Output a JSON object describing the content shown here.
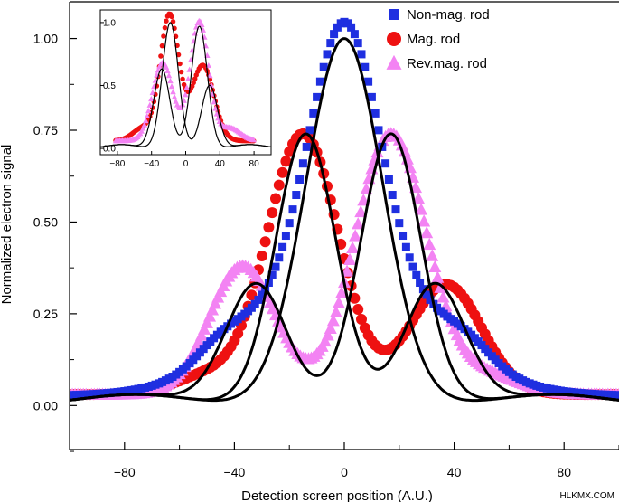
{
  "chart_data": {
    "type": "scatter",
    "title": "",
    "xlabel": "Detection screen position (A.U.)",
    "ylabel": "Normalized electron signal",
    "xlim": [
      -100,
      100
    ],
    "ylim": [
      -0.12,
      1.1
    ],
    "x_ticks": [
      -80,
      -40,
      0,
      40,
      80
    ],
    "x_tick_labels": [
      "−80",
      "−40",
      "0",
      "40",
      "80"
    ],
    "y_ticks": [
      0.0,
      0.25,
      0.5,
      0.75,
      1.0
    ],
    "y_tick_labels": [
      "0.00",
      "0.25",
      "0.50",
      "0.75",
      "1.00"
    ],
    "legend_position": "top-right",
    "series": [
      {
        "name": "Non-mag. rod",
        "marker": "square",
        "color": "#1f2fe0",
        "comps": [
          [
            0.06,
            0,
            40
          ],
          [
            0.62,
            0,
            12
          ],
          [
            0.34,
            0,
            28
          ],
          [
            0.05,
            -45,
            9
          ],
          [
            0.05,
            45,
            9
          ]
        ],
        "base": 0.025
      },
      {
        "name": "Mag. rod",
        "marker": "circle",
        "color": "#ee1111",
        "comps": [
          [
            0.71,
            -15,
            13
          ],
          [
            0.3,
            37,
            13
          ],
          [
            0.05,
            -50,
            12
          ]
        ],
        "base": 0.03
      },
      {
        "name": "Rev.mag. rod",
        "marker": "triangle",
        "color": "#f383f3",
        "comps": [
          [
            0.71,
            17,
            13
          ],
          [
            0.35,
            -37,
            12
          ],
          [
            0.05,
            52,
            12
          ]
        ],
        "base": 0.03
      }
    ],
    "fits": [
      {
        "color": "#000000",
        "comps": [
          [
            1.0,
            0,
            14
          ]
        ],
        "base": 0.0,
        "rings": [
          0.03,
          76,
          20
        ]
      },
      {
        "color": "#000000",
        "comps": [
          [
            0.74,
            -14,
            11
          ],
          [
            0.33,
            33,
            11
          ]
        ],
        "base": 0.0,
        "rings": [
          0.03,
          76,
          20
        ]
      },
      {
        "color": "#000000",
        "comps": [
          [
            0.74,
            17,
            11
          ],
          [
            0.33,
            -32,
            11
          ]
        ],
        "base": 0.0,
        "rings": [
          0.03,
          76,
          20
        ]
      }
    ],
    "inset": {
      "xlim": [
        -100,
        100
      ],
      "ylim": [
        -0.05,
        1.1
      ],
      "x_ticks": [
        -80,
        -40,
        0,
        40,
        80
      ],
      "x_tick_labels": [
        "−80",
        "−40",
        "0",
        "40",
        "80"
      ],
      "y_ticks": [
        0.0,
        0.5,
        1.0
      ],
      "y_tick_labels": [
        "0.0",
        "0.5",
        "1.0"
      ],
      "series": [
        {
          "color": "#ee1111",
          "marker": "circle",
          "comps": [
            [
              1.0,
              -19,
              11
            ],
            [
              0.6,
              20,
              13
            ],
            [
              0.1,
              -50,
              12
            ]
          ],
          "base": 0.06,
          "xrange": [
            -82,
            80
          ]
        },
        {
          "color": "#f383f3",
          "marker": "triangle",
          "comps": [
            [
              0.95,
              16,
              11
            ],
            [
              0.62,
              -27,
              12
            ],
            [
              0.1,
              52,
              12
            ]
          ],
          "base": 0.06,
          "xrange": [
            -82,
            80
          ]
        }
      ],
      "fits": [
        {
          "color": "#000000",
          "comps": [
            [
              1.0,
              -18,
              9.5
            ],
            [
              0.5,
              28,
              9.5
            ]
          ],
          "base": 0.0,
          "rings": [
            0.03,
            75,
            18
          ]
        },
        {
          "color": "#000000",
          "comps": [
            [
              0.97,
              16,
              9.5
            ],
            [
              0.63,
              -28,
              9.5
            ]
          ],
          "base": 0.0,
          "rings": [
            0.03,
            75,
            18
          ]
        }
      ]
    }
  },
  "watermark": "HLKMX.COM"
}
